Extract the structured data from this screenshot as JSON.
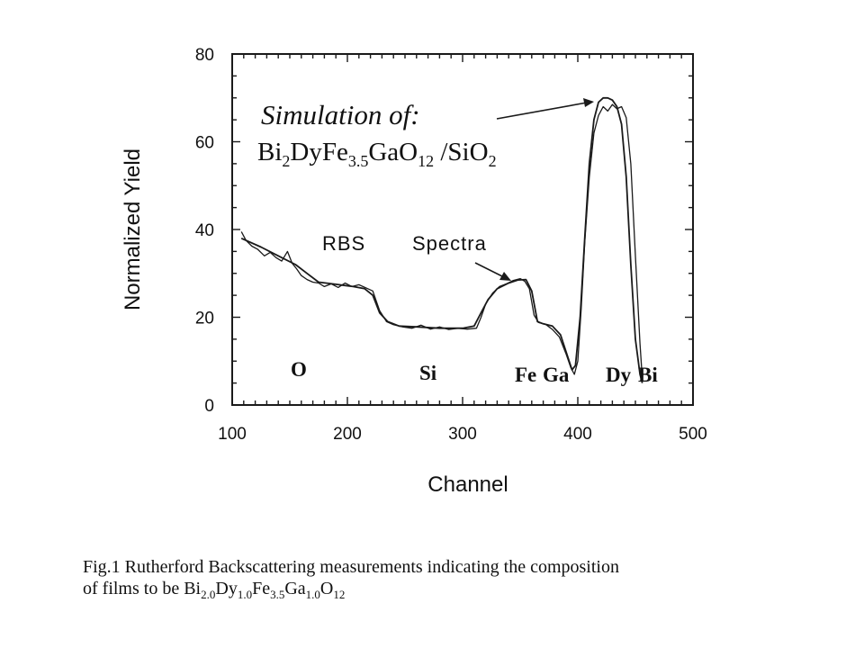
{
  "chart_data": {
    "type": "line",
    "xlabel": "Channel",
    "ylabel": "Normalized Yield",
    "xlim": [
      100,
      500
    ],
    "ylim": [
      0,
      80
    ],
    "x_ticks": [
      "100",
      "200",
      "300",
      "400",
      "500"
    ],
    "y_ticks": [
      "0",
      "20",
      "40",
      "60",
      "80"
    ],
    "grid": false,
    "series": [
      {
        "name": "Simulation",
        "x": [
          108,
          125,
          140,
          155,
          165,
          175,
          190,
          205,
          215,
          222,
          228,
          235,
          245,
          260,
          280,
          300,
          310,
          316,
          322,
          330,
          340,
          348,
          355,
          360,
          365,
          370,
          378,
          385,
          390,
          395,
          398,
          402,
          406,
          410,
          414,
          418,
          422,
          426,
          430,
          434,
          438,
          442,
          446,
          450,
          454,
          456
        ],
        "y": [
          38,
          36,
          34,
          32,
          30,
          28,
          27.5,
          27,
          26.5,
          25,
          21,
          19,
          18,
          17.8,
          17.5,
          17.5,
          18,
          21,
          24,
          26.5,
          27.8,
          28.5,
          28.6,
          26,
          19,
          18.5,
          18,
          16,
          12,
          8,
          9,
          20,
          38,
          55,
          65,
          69,
          70,
          70,
          69.5,
          68,
          64,
          52,
          32,
          15,
          7,
          5
        ]
      },
      {
        "name": "RBS Spectra",
        "x": [
          108,
          112,
          117,
          122,
          128,
          133,
          138,
          143,
          148,
          152,
          156,
          160,
          165,
          170,
          175,
          180,
          186,
          192,
          198,
          204,
          210,
          216,
          222,
          228,
          234,
          240,
          248,
          256,
          264,
          272,
          280,
          288,
          296,
          304,
          312,
          316,
          320,
          326,
          332,
          338,
          344,
          350,
          354,
          358,
          362,
          366,
          372,
          378,
          384,
          390,
          394,
          397,
          400,
          403,
          406,
          410,
          414,
          418,
          422,
          426,
          430,
          434,
          438,
          442,
          446,
          450,
          454,
          456
        ],
        "y": [
          39.5,
          37.5,
          36.2,
          35.5,
          34,
          34.8,
          33.6,
          32.8,
          35,
          32.3,
          31,
          29.5,
          28.6,
          28,
          27.8,
          27,
          27.6,
          26.8,
          27.8,
          27,
          27.4,
          26.7,
          26,
          21.5,
          19,
          18.3,
          17.8,
          17.5,
          18.2,
          17.3,
          17.8,
          17.2,
          17.5,
          17.3,
          17.5,
          20,
          23,
          25.5,
          27,
          27.6,
          28.4,
          28.8,
          28.2,
          26.5,
          20.5,
          18.8,
          18.4,
          17.2,
          15.5,
          11.5,
          8.5,
          7,
          10,
          22,
          37,
          52,
          62,
          66,
          68,
          67,
          68.5,
          67.5,
          68,
          65.5,
          55,
          34,
          14,
          6
        ]
      }
    ]
  },
  "annotations": {
    "simulation_heading": "Simulation of:",
    "formula_parts": [
      "Bi",
      "2",
      "DyFe",
      "3.5",
      "GaO",
      "12",
      " /SiO",
      "2"
    ],
    "rbs_label": "RBS",
    "spectra_label": "Spectra",
    "element_labels": [
      "O",
      "Si",
      "Fe",
      "Ga",
      "Dy",
      "Bi"
    ]
  },
  "caption": {
    "line1": "Fig.1 Rutherford Backscattering measurements indicating the composition",
    "line2_prefix": "of films to be ",
    "line2_parts": [
      "Bi",
      "2.0",
      "Dy",
      "1.0",
      "Fe",
      "3.5",
      "Ga",
      "1.0",
      "O",
      "12"
    ]
  },
  "colors": {
    "line": "#1a1a1a",
    "axis": "#1a1a1a",
    "background": "#ffffff"
  }
}
